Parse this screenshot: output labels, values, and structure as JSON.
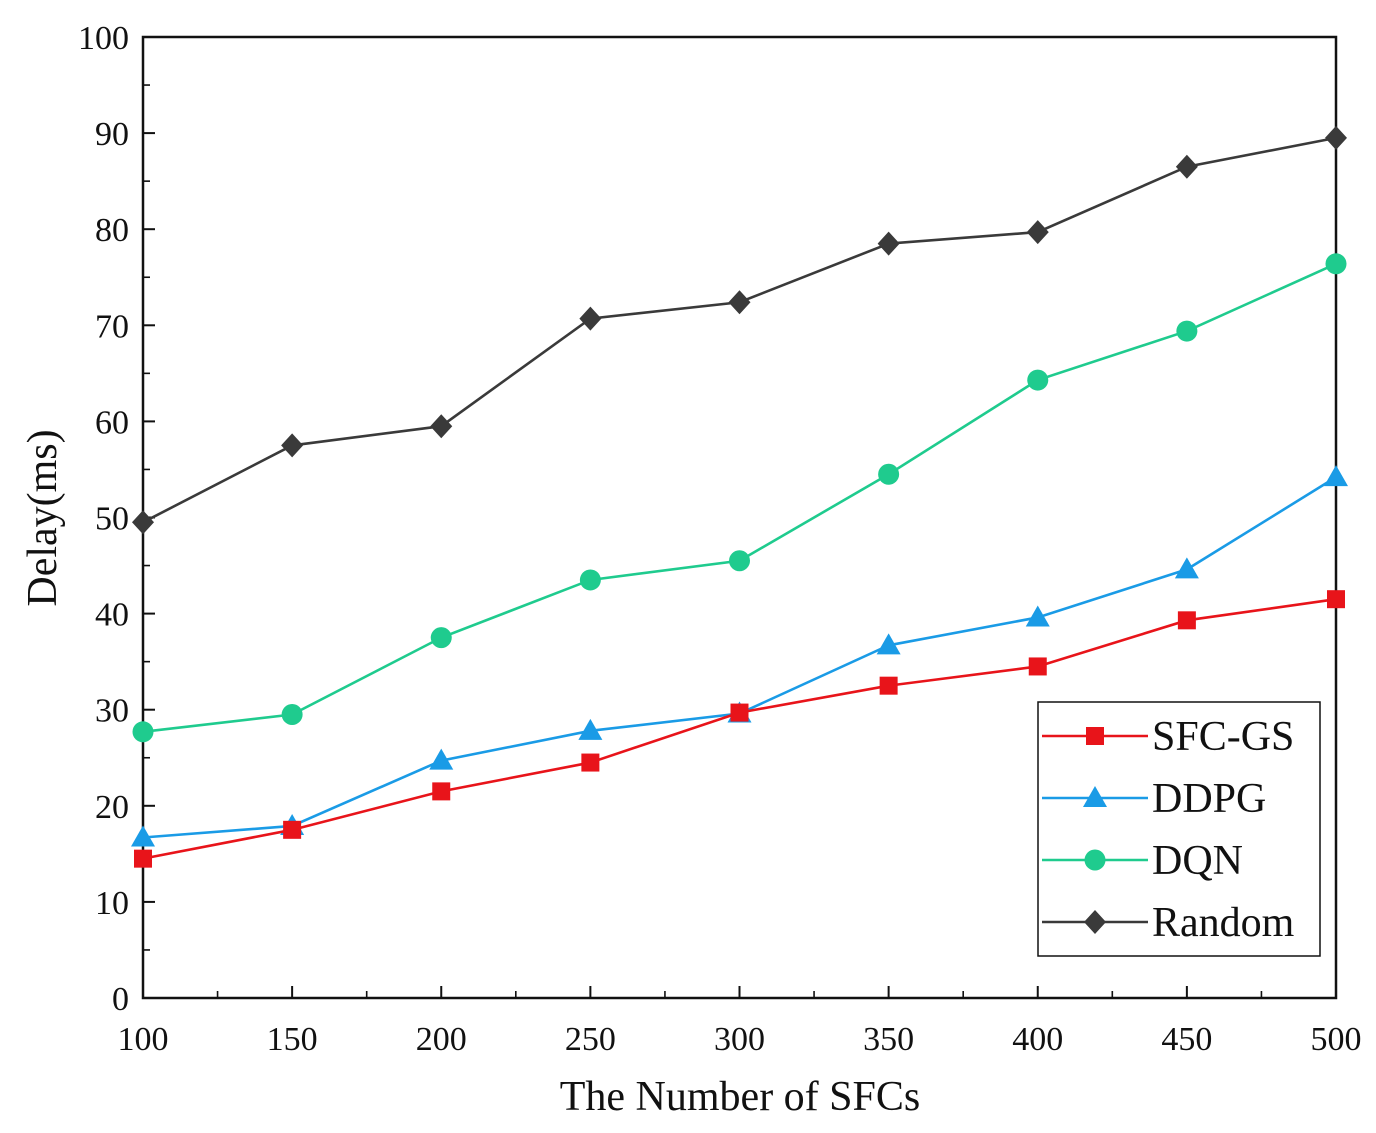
{
  "chart_data": {
    "type": "line",
    "title": "",
    "xlabel": "The Number of SFCs",
    "ylabel": "Delay(ms)",
    "x": [
      100,
      150,
      200,
      250,
      300,
      350,
      400,
      450,
      500
    ],
    "xlim": [
      100,
      500
    ],
    "ylim": [
      0,
      100
    ],
    "xticks": [
      100,
      150,
      200,
      250,
      300,
      350,
      400,
      450,
      500
    ],
    "yticks": [
      0,
      10,
      20,
      30,
      40,
      50,
      60,
      70,
      80,
      90,
      100
    ],
    "grid": false,
    "legend_position": "bottom-right",
    "series": [
      {
        "name": "SFC-GS",
        "color": "#e8141a",
        "marker": "square",
        "values": [
          14.5,
          17.5,
          21.5,
          24.5,
          29.7,
          32.5,
          34.5,
          39.3,
          41.5
        ]
      },
      {
        "name": "DDPG",
        "color": "#1a9be6",
        "marker": "triangle",
        "values": [
          16.7,
          17.9,
          24.7,
          27.8,
          29.6,
          36.7,
          39.6,
          44.6,
          54.2
        ]
      },
      {
        "name": "DQN",
        "color": "#1fcb8e",
        "marker": "circle",
        "values": [
          27.7,
          29.5,
          37.5,
          43.5,
          45.5,
          54.5,
          64.3,
          69.4,
          76.4
        ]
      },
      {
        "name": "Random",
        "color": "#3a3a3a",
        "marker": "diamond",
        "values": [
          49.5,
          57.5,
          59.5,
          70.7,
          72.4,
          78.5,
          79.7,
          86.5,
          89.5
        ]
      }
    ]
  }
}
